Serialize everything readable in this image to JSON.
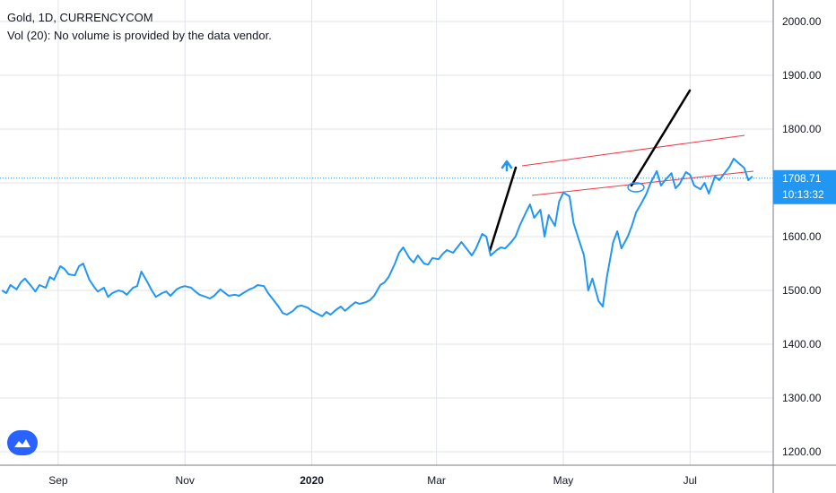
{
  "header": {
    "symbol_line": "Gold, 1D, CURRENCYCOM",
    "volume_line": "Vol (20): No volume is provided by the data vendor."
  },
  "price_tag": {
    "price": "1708.71",
    "countdown": "10:13:32",
    "color": "#2196f3"
  },
  "colors": {
    "line": "#2196f3",
    "channel": "#f23645",
    "trend": "#000000",
    "grid": "#e0e3eb",
    "axis": "#787b86"
  },
  "chart_data": {
    "type": "line",
    "symbol": "Gold",
    "interval": "1D",
    "source": "CURRENCYCOM",
    "ylim": [
      1180,
      2040
    ],
    "yticks": [
      2000,
      1900,
      1800,
      1700,
      1600,
      1500,
      1400,
      1300,
      1200
    ],
    "ytick_labels": [
      "2000.00",
      "1900.00",
      "1800.00",
      "1700.00",
      "1600.00",
      "1500.00",
      "1400.00",
      "1300.00",
      "1200.00"
    ],
    "xticks": [
      {
        "label": "Sep",
        "x": "2019-09-01",
        "bold": false
      },
      {
        "label": "Nov",
        "x": "2019-11-01",
        "bold": false
      },
      {
        "label": "2020",
        "x": "2020-01-01",
        "bold": true
      },
      {
        "label": "Mar",
        "x": "2020-03-01",
        "bold": false
      },
      {
        "label": "May",
        "x": "2020-05-01",
        "bold": false
      },
      {
        "label": "Jul",
        "x": "2020-07-01",
        "bold": false
      }
    ],
    "xlim": [
      "2019-08-04",
      "2020-08-10"
    ],
    "last_price": 1708.71,
    "series": [
      {
        "points": [
          [
            "2019-08-05",
            1500
          ],
          [
            "2019-08-07",
            1495
          ],
          [
            "2019-08-09",
            1510
          ],
          [
            "2019-08-12",
            1502
          ],
          [
            "2019-08-14",
            1515
          ],
          [
            "2019-08-16",
            1522
          ],
          [
            "2019-08-19",
            1508
          ],
          [
            "2019-08-21",
            1498
          ],
          [
            "2019-08-23",
            1510
          ],
          [
            "2019-08-26",
            1505
          ],
          [
            "2019-08-28",
            1525
          ],
          [
            "2019-08-30",
            1520
          ],
          [
            "2019-09-02",
            1545
          ],
          [
            "2019-09-04",
            1540
          ],
          [
            "2019-09-06",
            1530
          ],
          [
            "2019-09-09",
            1528
          ],
          [
            "2019-09-11",
            1545
          ],
          [
            "2019-09-13",
            1550
          ],
          [
            "2019-09-16",
            1520
          ],
          [
            "2019-09-18",
            1508
          ],
          [
            "2019-09-20",
            1498
          ],
          [
            "2019-09-23",
            1505
          ],
          [
            "2019-09-25",
            1488
          ],
          [
            "2019-09-27",
            1495
          ],
          [
            "2019-09-30",
            1500
          ],
          [
            "2019-10-02",
            1498
          ],
          [
            "2019-10-04",
            1492
          ],
          [
            "2019-10-07",
            1505
          ],
          [
            "2019-10-09",
            1508
          ],
          [
            "2019-10-11",
            1535
          ],
          [
            "2019-10-14",
            1515
          ],
          [
            "2019-10-16",
            1500
          ],
          [
            "2019-10-18",
            1488
          ],
          [
            "2019-10-21",
            1495
          ],
          [
            "2019-10-23",
            1498
          ],
          [
            "2019-10-25",
            1490
          ],
          [
            "2019-10-28",
            1502
          ],
          [
            "2019-10-30",
            1506
          ],
          [
            "2019-11-01",
            1508
          ],
          [
            "2019-11-04",
            1505
          ],
          [
            "2019-11-06",
            1498
          ],
          [
            "2019-11-08",
            1492
          ],
          [
            "2019-11-11",
            1488
          ],
          [
            "2019-11-13",
            1485
          ],
          [
            "2019-11-15",
            1490
          ],
          [
            "2019-11-18",
            1502
          ],
          [
            "2019-11-20",
            1496
          ],
          [
            "2019-11-22",
            1490
          ],
          [
            "2019-11-25",
            1492
          ],
          [
            "2019-11-27",
            1490
          ],
          [
            "2019-11-29",
            1495
          ],
          [
            "2019-12-02",
            1502
          ],
          [
            "2019-12-04",
            1505
          ],
          [
            "2019-12-06",
            1510
          ],
          [
            "2019-12-09",
            1508
          ],
          [
            "2019-12-11",
            1495
          ],
          [
            "2019-12-13",
            1485
          ],
          [
            "2019-12-16",
            1470
          ],
          [
            "2019-12-18",
            1458
          ],
          [
            "2019-12-20",
            1455
          ],
          [
            "2019-12-23",
            1462
          ],
          [
            "2019-12-25",
            1470
          ],
          [
            "2019-12-27",
            1472
          ],
          [
            "2019-12-30",
            1468
          ],
          [
            "2020-01-01",
            1462
          ],
          [
            "2020-01-03",
            1458
          ],
          [
            "2020-01-06",
            1452
          ],
          [
            "2020-01-08",
            1460
          ],
          [
            "2020-01-10",
            1455
          ],
          [
            "2020-01-13",
            1465
          ],
          [
            "2020-01-15",
            1470
          ],
          [
            "2020-01-17",
            1462
          ],
          [
            "2020-01-20",
            1472
          ],
          [
            "2020-01-22",
            1478
          ],
          [
            "2020-01-24",
            1475
          ],
          [
            "2020-01-27",
            1478
          ],
          [
            "2020-01-29",
            1482
          ],
          [
            "2020-01-31",
            1490
          ],
          [
            "2020-02-03",
            1510
          ],
          [
            "2020-02-05",
            1515
          ],
          [
            "2020-02-07",
            1525
          ],
          [
            "2020-02-10",
            1550
          ],
          [
            "2020-02-12",
            1570
          ],
          [
            "2020-02-14",
            1580
          ],
          [
            "2020-02-17",
            1560
          ],
          [
            "2020-02-19",
            1552
          ],
          [
            "2020-02-21",
            1565
          ],
          [
            "2020-02-24",
            1550
          ],
          [
            "2020-02-26",
            1548
          ],
          [
            "2020-02-28",
            1560
          ],
          [
            "2020-03-02",
            1558
          ],
          [
            "2020-03-04",
            1568
          ],
          [
            "2020-03-06",
            1575
          ],
          [
            "2020-03-09",
            1570
          ],
          [
            "2020-03-11",
            1580
          ],
          [
            "2020-03-13",
            1590
          ],
          [
            "2020-03-16",
            1575
          ],
          [
            "2020-03-18",
            1565
          ],
          [
            "2020-03-20",
            1578
          ],
          [
            "2020-03-23",
            1605
          ],
          [
            "2020-03-25",
            1600
          ],
          [
            "2020-03-27",
            1565
          ],
          [
            "2020-03-30",
            1575
          ],
          [
            "2020-04-01",
            1580
          ],
          [
            "2020-04-03",
            1578
          ],
          [
            "2020-04-06",
            1590
          ],
          [
            "2020-04-08",
            1600
          ],
          [
            "2020-04-10",
            1620
          ],
          [
            "2020-04-13",
            1645
          ],
          [
            "2020-04-15",
            1660
          ],
          [
            "2020-04-17",
            1635
          ],
          [
            "2020-04-20",
            1650
          ],
          [
            "2020-04-22",
            1600
          ],
          [
            "2020-04-24",
            1640
          ],
          [
            "2020-04-27",
            1620
          ],
          [
            "2020-04-29",
            1665
          ],
          [
            "2020-05-01",
            1682
          ],
          [
            "2020-05-04",
            1675
          ],
          [
            "2020-05-06",
            1625
          ],
          [
            "2020-05-08",
            1600
          ],
          [
            "2020-05-11",
            1565
          ],
          [
            "2020-05-13",
            1500
          ],
          [
            "2020-05-15",
            1522
          ],
          [
            "2020-05-18",
            1480
          ],
          [
            "2020-05-20",
            1470
          ],
          [
            "2020-05-22",
            1525
          ],
          [
            "2020-05-25",
            1590
          ],
          [
            "2020-05-27",
            1610
          ],
          [
            "2020-05-29",
            1578
          ],
          [
            "2020-06-01",
            1600
          ],
          [
            "2020-06-03",
            1620
          ],
          [
            "2020-06-05",
            1645
          ],
          [
            "2020-06-08",
            1665
          ],
          [
            "2020-06-10",
            1680
          ],
          [
            "2020-06-12",
            1700
          ],
          [
            "2020-06-15",
            1722
          ],
          [
            "2020-06-17",
            1695
          ],
          [
            "2020-06-19",
            1705
          ],
          [
            "2020-06-22",
            1718
          ],
          [
            "2020-06-24",
            1690
          ],
          [
            "2020-06-26",
            1698
          ],
          [
            "2020-06-29",
            1720
          ],
          [
            "2020-07-01",
            1715
          ],
          [
            "2020-07-03",
            1695
          ],
          [
            "2020-07-06",
            1688
          ],
          [
            "2020-07-08",
            1700
          ],
          [
            "2020-07-10",
            1680
          ],
          [
            "2020-07-13",
            1712
          ],
          [
            "2020-07-15",
            1705
          ],
          [
            "2020-07-17",
            1715
          ],
          [
            "2020-07-20",
            1730
          ],
          [
            "2020-07-22",
            1745
          ],
          [
            "2020-07-24",
            1738
          ],
          [
            "2020-07-27",
            1728
          ],
          [
            "2020-07-29",
            1705
          ],
          [
            "2020-07-31",
            1712
          ]
        ]
      }
    ]
  }
}
